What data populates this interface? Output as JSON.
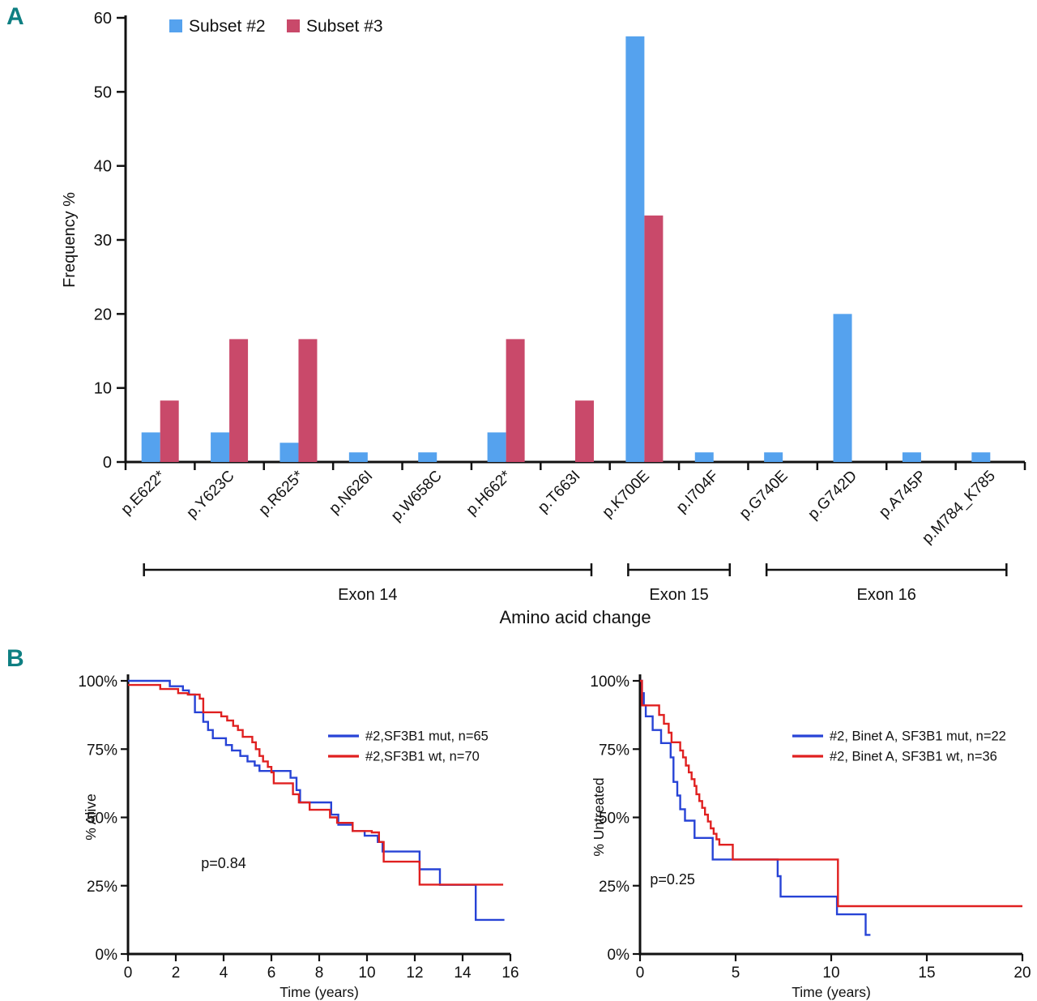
{
  "figure": {
    "panel_a_label": "A",
    "panel_b_label": "B",
    "panel_label_color": "#0e7f82",
    "background_color": "#ffffff",
    "axis_color": "#111111"
  },
  "chart_data": [
    {
      "id": "mutation-frequency",
      "type": "bar",
      "title": "",
      "xlabel": "Amino acid change",
      "ylabel": "Frequency %",
      "ylim": [
        0,
        60
      ],
      "yticks": [
        0,
        10,
        20,
        30,
        40,
        50,
        60
      ],
      "grid": false,
      "legend_position": "top-left",
      "categories": [
        "p.E622*",
        "p.Y623C",
        "p.R625*",
        "p.N626I",
        "p.W658C",
        "p.H662*",
        "p.T663I",
        "p.K700E",
        "p.I704F",
        "p.G740E",
        "p.G742D",
        "p.A745P",
        "p.M784_K785"
      ],
      "series": [
        {
          "name": "Subset #2",
          "color": "#55a2ee",
          "values": [
            4,
            4,
            2.6,
            1.3,
            1.3,
            4,
            0,
            57.5,
            1.3,
            1.3,
            20,
            1.3,
            1.3
          ]
        },
        {
          "name": "Subset #3",
          "color": "#c9496a",
          "values": [
            8.3,
            16.6,
            16.6,
            0,
            0,
            16.6,
            8.3,
            33.3,
            0,
            0,
            0,
            0,
            0
          ]
        }
      ],
      "exon_groups": [
        {
          "label": "Exon 14",
          "from": 0,
          "to": 6
        },
        {
          "label": "Exon 15",
          "from": 7,
          "to": 8
        },
        {
          "label": "Exon 16",
          "from": 9,
          "to": 12
        }
      ]
    },
    {
      "id": "overall-survival",
      "type": "line",
      "step": true,
      "xlabel": "Time (years)",
      "ylabel": "% Alive",
      "xlim": [
        0,
        16
      ],
      "ylim": [
        0,
        100
      ],
      "xticks": [
        0,
        2,
        4,
        6,
        8,
        10,
        12,
        14,
        16
      ],
      "yticks": [
        0,
        25,
        50,
        75,
        100
      ],
      "ytick_suffix": "%",
      "annotation": {
        "text": "p=0.84",
        "x": 4.0,
        "y": 31.5
      },
      "series": [
        {
          "name": "#2,SF3B1 mut, n=65",
          "color": "#2743d6",
          "points": [
            [
              0,
              100
            ],
            [
              1.75,
              98
            ],
            [
              2.3,
              96.5
            ],
            [
              2.55,
              95
            ],
            [
              2.8,
              88.5
            ],
            [
              3.15,
              85
            ],
            [
              3.35,
              82
            ],
            [
              3.55,
              79
            ],
            [
              4.1,
              76.5
            ],
            [
              4.35,
              74.5
            ],
            [
              4.7,
              72.5
            ],
            [
              5.0,
              70.5
            ],
            [
              5.3,
              69
            ],
            [
              5.5,
              67
            ],
            [
              6.8,
              64.5
            ],
            [
              7.05,
              60
            ],
            [
              7.2,
              55.5
            ],
            [
              8.5,
              51
            ],
            [
              8.8,
              47.3
            ],
            [
              9.4,
              45
            ],
            [
              9.9,
              43.3
            ],
            [
              10.45,
              41
            ],
            [
              10.65,
              37.5
            ],
            [
              12.2,
              31
            ],
            [
              13.05,
              25.3
            ],
            [
              14.55,
              12.5
            ],
            [
              15.75,
              12.5
            ]
          ]
        },
        {
          "name": "#2,SF3B1 wt, n=70",
          "color": "#e02020",
          "points": [
            [
              0,
              98.5
            ],
            [
              1.35,
              97
            ],
            [
              2.1,
              95.5
            ],
            [
              2.5,
              95
            ],
            [
              3.0,
              93.5
            ],
            [
              3.15,
              88.5
            ],
            [
              3.9,
              87
            ],
            [
              4.15,
              85.5
            ],
            [
              4.4,
              83.5
            ],
            [
              4.6,
              82
            ],
            [
              4.8,
              79.5
            ],
            [
              5.2,
              77.5
            ],
            [
              5.35,
              75
            ],
            [
              5.5,
              72.5
            ],
            [
              5.65,
              70.5
            ],
            [
              5.85,
              68.5
            ],
            [
              6.0,
              66.5
            ],
            [
              6.1,
              62.5
            ],
            [
              6.9,
              58.5
            ],
            [
              7.15,
              55.5
            ],
            [
              7.6,
              52.8
            ],
            [
              8.45,
              50
            ],
            [
              8.75,
              48
            ],
            [
              9.4,
              45
            ],
            [
              10.2,
              44.5
            ],
            [
              10.5,
              41
            ],
            [
              10.7,
              33.8
            ],
            [
              12.2,
              25.4
            ],
            [
              15.7,
              25.4
            ]
          ]
        }
      ]
    },
    {
      "id": "time-to-treatment",
      "type": "line",
      "step": true,
      "xlabel": "Time (years)",
      "ylabel": "% Untreated",
      "xlim": [
        0,
        20
      ],
      "ylim": [
        0,
        100
      ],
      "xticks": [
        0,
        5,
        10,
        15,
        20
      ],
      "yticks": [
        0,
        25,
        50,
        75,
        100
      ],
      "ytick_suffix": "%",
      "annotation": {
        "text": "p=0.25",
        "x": 1.7,
        "y": 25.5
      },
      "series": [
        {
          "name": "#2, Binet A, SF3B1 mut, n=22",
          "color": "#2743d6",
          "points": [
            [
              0,
              100
            ],
            [
              0.1,
              95.5
            ],
            [
              0.2,
              91
            ],
            [
              0.3,
              87
            ],
            [
              0.66,
              82
            ],
            [
              1.1,
              77.2
            ],
            [
              1.6,
              72
            ],
            [
              1.75,
              63
            ],
            [
              1.95,
              58
            ],
            [
              2.1,
              53
            ],
            [
              2.35,
              48.8
            ],
            [
              2.85,
              42.5
            ],
            [
              3.8,
              34.6
            ],
            [
              7.2,
              28.5
            ],
            [
              7.35,
              21
            ],
            [
              10.3,
              14.5
            ],
            [
              11.8,
              7
            ],
            [
              12.05,
              7
            ]
          ]
        },
        {
          "name": "#2, Binet A, SF3B1 wt, n=36",
          "color": "#e02020",
          "points": [
            [
              0,
              100
            ],
            [
              0.1,
              91
            ],
            [
              1.0,
              87.5
            ],
            [
              1.25,
              84.3
            ],
            [
              1.5,
              81
            ],
            [
              1.65,
              77.5
            ],
            [
              2.1,
              74.5
            ],
            [
              2.25,
              72
            ],
            [
              2.4,
              69
            ],
            [
              2.55,
              66.5
            ],
            [
              2.7,
              64
            ],
            [
              2.85,
              61.5
            ],
            [
              2.95,
              58.5
            ],
            [
              3.1,
              56
            ],
            [
              3.25,
              53.5
            ],
            [
              3.4,
              51
            ],
            [
              3.55,
              48.5
            ],
            [
              3.7,
              46
            ],
            [
              3.85,
              44
            ],
            [
              4.0,
              42
            ],
            [
              4.15,
              40
            ],
            [
              4.85,
              34.6
            ],
            [
              10.35,
              17.5
            ],
            [
              20,
              17.5
            ]
          ]
        }
      ]
    }
  ]
}
